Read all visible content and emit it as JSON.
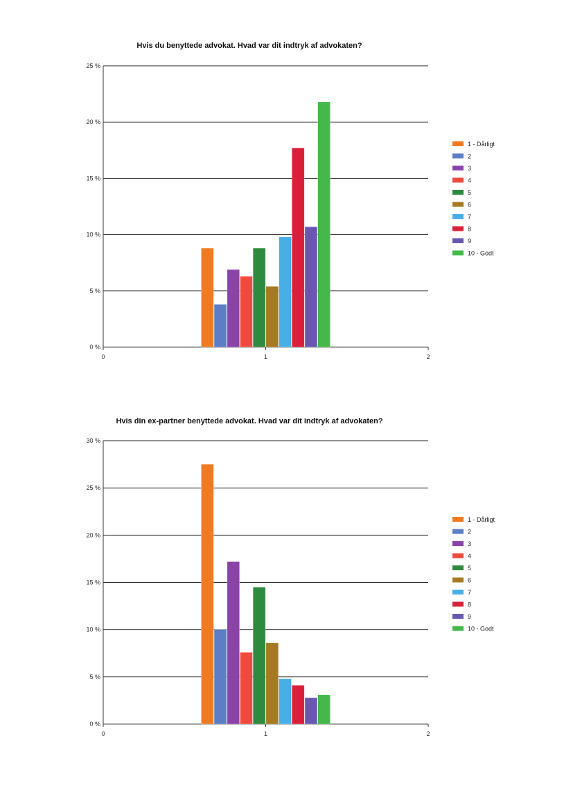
{
  "chart_data": [
    {
      "type": "bar",
      "title": "Hvis du benyttede advokat. Hvad var dit indtryk af advokaten?",
      "xlabel": "",
      "ylabel": "",
      "xlim": [
        0,
        2
      ],
      "x_ticks": [
        "0",
        "1",
        "2"
      ],
      "ylim": [
        0,
        25
      ],
      "y_ticks": [
        "0 %",
        "5 %",
        "10 %",
        "15 %",
        "20 %",
        "25 %"
      ],
      "grid": true,
      "legend_position": "right",
      "categories": [
        "1"
      ],
      "series": [
        {
          "name": "1 - Dårligt",
          "values": [
            8.8
          ],
          "color": "#f07a22"
        },
        {
          "name": "2",
          "values": [
            3.8
          ],
          "color": "#5b7ec4"
        },
        {
          "name": "3",
          "values": [
            6.9
          ],
          "color": "#8a44a8"
        },
        {
          "name": "4",
          "values": [
            6.3
          ],
          "color": "#ee4b3e"
        },
        {
          "name": "5",
          "values": [
            8.8
          ],
          "color": "#2e8a3e"
        },
        {
          "name": "6",
          "values": [
            5.4
          ],
          "color": "#a57a22"
        },
        {
          "name": "7",
          "values": [
            9.8
          ],
          "color": "#4aaee6"
        },
        {
          "name": "8",
          "values": [
            17.7
          ],
          "color": "#d9203a"
        },
        {
          "name": "9",
          "values": [
            10.7
          ],
          "color": "#6a58b0"
        },
        {
          "name": "10 - Godt",
          "values": [
            21.8
          ],
          "color": "#44b84a"
        }
      ]
    },
    {
      "type": "bar",
      "title": "Hvis din ex-partner benyttede advokat. Hvad var dit indtryk af advokaten?",
      "xlabel": "",
      "ylabel": "",
      "xlim": [
        0,
        2
      ],
      "x_ticks": [
        "0",
        "1",
        "2"
      ],
      "ylim": [
        0,
        30
      ],
      "y_ticks": [
        "0 %",
        "5 %",
        "10 %",
        "15 %",
        "20 %",
        "25 %",
        "30 %"
      ],
      "grid": true,
      "legend_position": "right",
      "categories": [
        "1"
      ],
      "series": [
        {
          "name": "1 - Dårligt",
          "values": [
            27.5
          ],
          "color": "#f07a22"
        },
        {
          "name": "2",
          "values": [
            10.0
          ],
          "color": "#5b7ec4"
        },
        {
          "name": "3",
          "values": [
            17.2
          ],
          "color": "#8a44a8"
        },
        {
          "name": "4",
          "values": [
            7.6
          ],
          "color": "#ee4b3e"
        },
        {
          "name": "5",
          "values": [
            14.5
          ],
          "color": "#2e8a3e"
        },
        {
          "name": "6",
          "values": [
            8.6
          ],
          "color": "#a57a22"
        },
        {
          "name": "7",
          "values": [
            4.8
          ],
          "color": "#4aaee6"
        },
        {
          "name": "8",
          "values": [
            4.1
          ],
          "color": "#d9203a"
        },
        {
          "name": "9",
          "values": [
            2.8
          ],
          "color": "#6a58b0"
        },
        {
          "name": "10 - Godt",
          "values": [
            3.1
          ],
          "color": "#44b84a"
        }
      ]
    }
  ]
}
